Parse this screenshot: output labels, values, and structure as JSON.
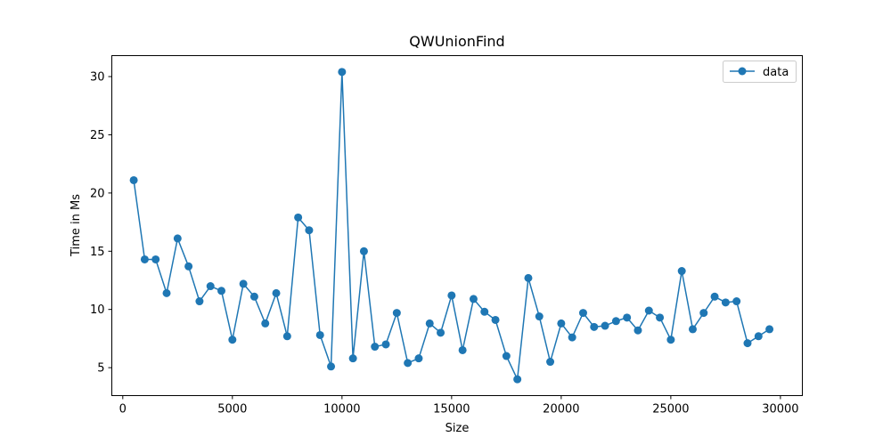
{
  "chart_data": {
    "type": "line",
    "title": "QWUnionFind",
    "xlabel": "Size",
    "ylabel": "Time in Ms",
    "xlim": [
      -500,
      31000
    ],
    "ylim": [
      2.6,
      31.8
    ],
    "xticks": [
      0,
      5000,
      10000,
      15000,
      20000,
      25000,
      30000
    ],
    "xtick_labels": [
      "0",
      "5000",
      "10000",
      "15000",
      "20000",
      "25000",
      "30000"
    ],
    "yticks": [
      5,
      10,
      15,
      20,
      25,
      30
    ],
    "ytick_labels": [
      "5",
      "10",
      "15",
      "20",
      "25",
      "30"
    ],
    "grid": false,
    "legend": "top-right",
    "series": [
      {
        "name": "data",
        "color": "#1f77b4",
        "marker": "circle",
        "x": [
          500,
          1000,
          1500,
          2000,
          2500,
          3000,
          3500,
          4000,
          4500,
          5000,
          5500,
          6000,
          6500,
          7000,
          7500,
          8000,
          8500,
          9000,
          9500,
          10000,
          10500,
          11000,
          11500,
          12000,
          12500,
          13000,
          13500,
          14000,
          14500,
          15000,
          15500,
          16000,
          16500,
          17000,
          17500,
          18000,
          18500,
          19000,
          19500,
          20000,
          20500,
          21000,
          21500,
          22000,
          22500,
          23000,
          23500,
          24000,
          24500,
          25000,
          25500,
          26000,
          26500,
          27000,
          27500,
          28000,
          28500,
          29000,
          29500
        ],
        "y": [
          21.1,
          14.3,
          14.3,
          11.4,
          16.1,
          13.7,
          10.7,
          12.0,
          11.6,
          7.4,
          12.2,
          11.1,
          8.8,
          11.4,
          7.7,
          17.9,
          16.8,
          7.8,
          5.1,
          30.4,
          5.8,
          15.0,
          6.8,
          7.0,
          9.7,
          5.4,
          5.8,
          8.8,
          8.0,
          11.2,
          6.5,
          10.9,
          9.8,
          9.1,
          6.0,
          4.0,
          12.7,
          9.4,
          5.5,
          8.8,
          7.6,
          9.7,
          8.5,
          8.6,
          9.0,
          9.3,
          8.2,
          9.9,
          9.3,
          7.4,
          13.3,
          8.3,
          9.7,
          11.1,
          10.6,
          10.7,
          7.1,
          7.7,
          8.3
        ]
      }
    ]
  }
}
